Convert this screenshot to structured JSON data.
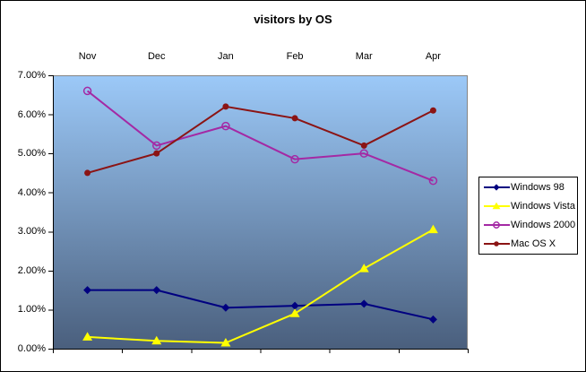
{
  "chart_data": {
    "type": "line",
    "title": "visitors by OS",
    "categories": [
      "Nov",
      "Dec",
      "Jan",
      "Feb",
      "Mar",
      "Apr"
    ],
    "series": [
      {
        "name": "Windows 98",
        "color": "#000080",
        "marker": "diamond",
        "values": [
          1.5,
          1.5,
          1.05,
          1.1,
          1.15,
          0.75
        ]
      },
      {
        "name": "Windows Vista",
        "color": "#FFFF00",
        "marker": "triangle",
        "values": [
          0.3,
          0.2,
          0.15,
          0.9,
          2.05,
          3.05
        ]
      },
      {
        "name": "Windows 2000",
        "color": "#A429A4",
        "marker": "circle-open",
        "values": [
          6.6,
          5.2,
          5.7,
          4.85,
          5.0,
          4.3
        ]
      },
      {
        "name": "Mac OS X",
        "color": "#8B1414",
        "marker": "circle",
        "values": [
          4.5,
          5.0,
          6.2,
          5.9,
          5.2,
          6.1
        ]
      }
    ],
    "yaxis": {
      "min": 0,
      "max": 7,
      "step": 1,
      "tick_labels": [
        "0.00%",
        "1.00%",
        "2.00%",
        "3.00%",
        "4.00%",
        "5.00%",
        "6.00%",
        "7.00%"
      ]
    },
    "xaxis": {
      "labels_position": "top"
    },
    "grid": false,
    "legend": {
      "position": "right"
    },
    "plot_background": {
      "top": "#9CC9F8",
      "bottom": "#4A5F7D"
    },
    "colors": {
      "axis": "#000000",
      "plot_border": "#848484",
      "chart_border": "#000000",
      "background": "#FFFFFF",
      "text": "#000000"
    }
  }
}
